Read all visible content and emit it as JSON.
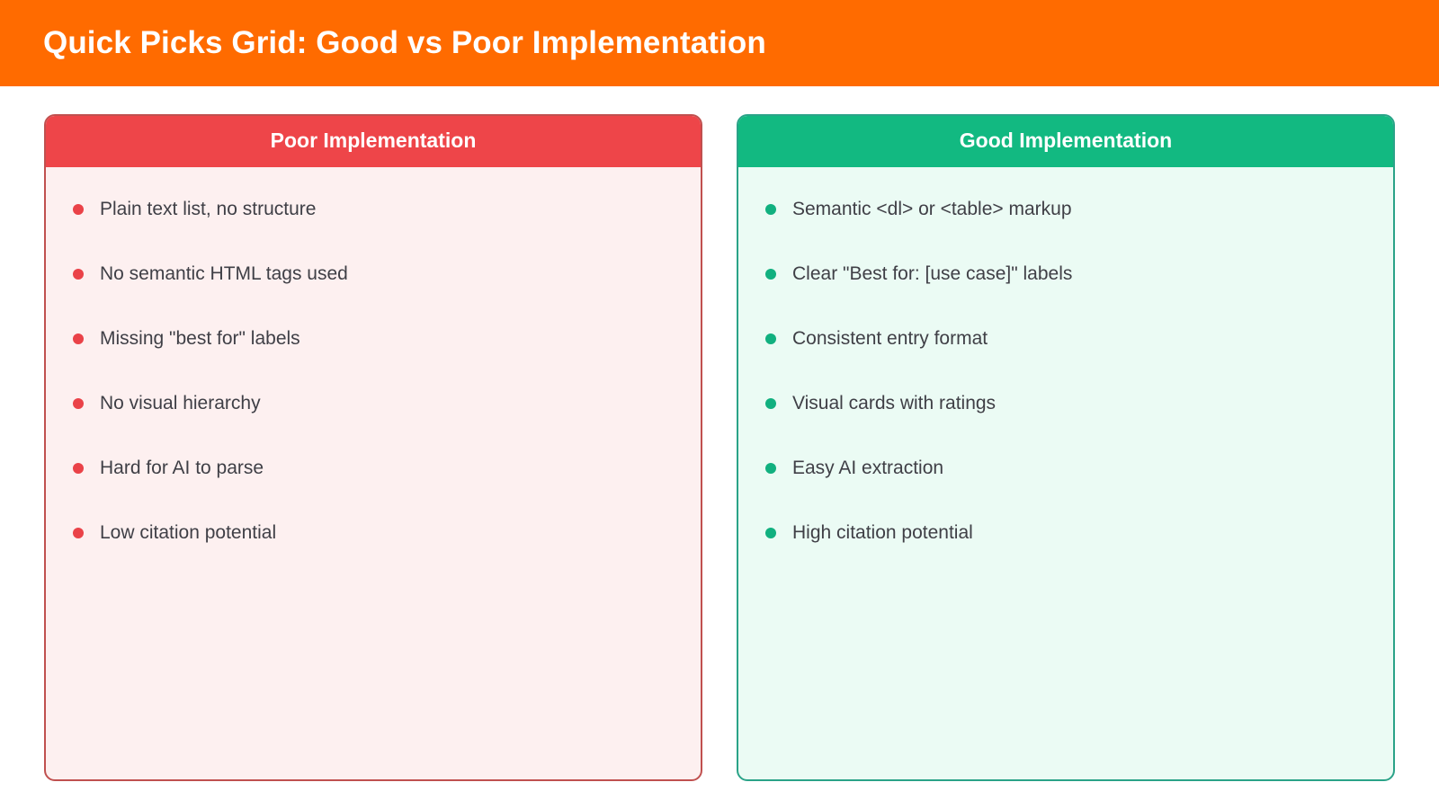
{
  "header": {
    "title": "Quick Picks Grid: Good vs Poor Implementation",
    "background_color": "#ff6b00"
  },
  "poor": {
    "title": "Poor Implementation",
    "accent_color": "#ee4549",
    "bullet_icon": "red-dot-icon",
    "items": [
      "Plain text list, no structure",
      "No semantic HTML tags used",
      "Missing \"best for\" labels",
      "No visual hierarchy",
      "Hard for AI to parse",
      "Low citation potential"
    ]
  },
  "good": {
    "title": "Good Implementation",
    "accent_color": "#12b981",
    "bullet_icon": "green-dot-icon",
    "items": [
      "Semantic <dl> or <table> markup",
      "Clear \"Best for: [use case]\" labels",
      "Consistent entry format",
      "Visual cards with ratings",
      "Easy AI extraction",
      "High citation potential"
    ]
  }
}
